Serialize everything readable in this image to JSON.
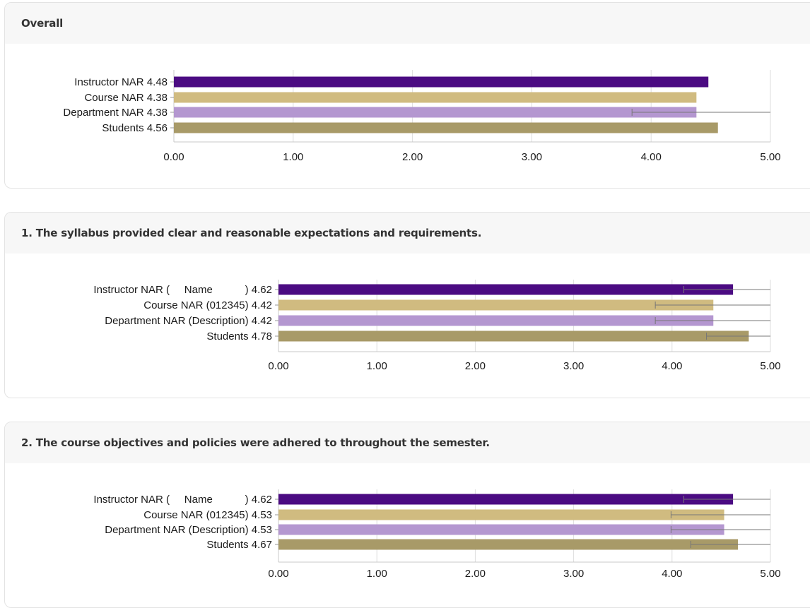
{
  "colors": {
    "instructor": "#4b0b82",
    "course": "#d0bb80",
    "department": "#b497d0",
    "students": "#a89a68",
    "grid": "#dedede",
    "error": "#777777"
  },
  "chart_data": [
    {
      "type": "bar",
      "orientation": "horizontal",
      "title": "Overall",
      "categories": [
        "Instructor NAR 4.48",
        "Course NAR 4.38",
        "Department NAR 4.38",
        "Students 4.56"
      ],
      "values": [
        4.48,
        4.38,
        4.38,
        4.56
      ],
      "error_ranges": [
        null,
        null,
        [
          3.84,
          5.0
        ],
        null
      ],
      "xlim": [
        0,
        5
      ],
      "xticks": [
        "0.00",
        "1.00",
        "2.00",
        "3.00",
        "4.00",
        "5.00"
      ],
      "grid": true
    },
    {
      "type": "bar",
      "orientation": "horizontal",
      "title": "1. The syllabus provided clear and reasonable expectations and requirements.",
      "categories": [
        "Instructor NAR (     Name           ) 4.62",
        "Course NAR (012345) 4.42",
        "Department NAR (Description) 4.42",
        "Students 4.78"
      ],
      "values": [
        4.62,
        4.42,
        4.42,
        4.78
      ],
      "error_ranges": [
        [
          4.12,
          5.0
        ],
        [
          3.83,
          5.0
        ],
        [
          3.83,
          5.0
        ],
        [
          4.35,
          5.0
        ]
      ],
      "xlim": [
        0,
        5
      ],
      "xticks": [
        "0.00",
        "1.00",
        "2.00",
        "3.00",
        "4.00",
        "5.00"
      ],
      "grid": true
    },
    {
      "type": "bar",
      "orientation": "horizontal",
      "title": "2. The course objectives and policies were adhered to throughout the semester.",
      "categories": [
        "Instructor NAR (     Name           ) 4.62",
        "Course NAR (012345) 4.53",
        "Department NAR (Description) 4.53",
        "Students 4.67"
      ],
      "values": [
        4.62,
        4.53,
        4.53,
        4.67
      ],
      "error_ranges": [
        [
          4.12,
          5.0
        ],
        [
          3.99,
          5.0
        ],
        [
          3.99,
          5.0
        ],
        [
          4.19,
          5.0
        ]
      ],
      "xlim": [
        0,
        5
      ],
      "xticks": [
        "0.00",
        "1.00",
        "2.00",
        "3.00",
        "4.00",
        "5.00"
      ],
      "grid": true
    }
  ]
}
